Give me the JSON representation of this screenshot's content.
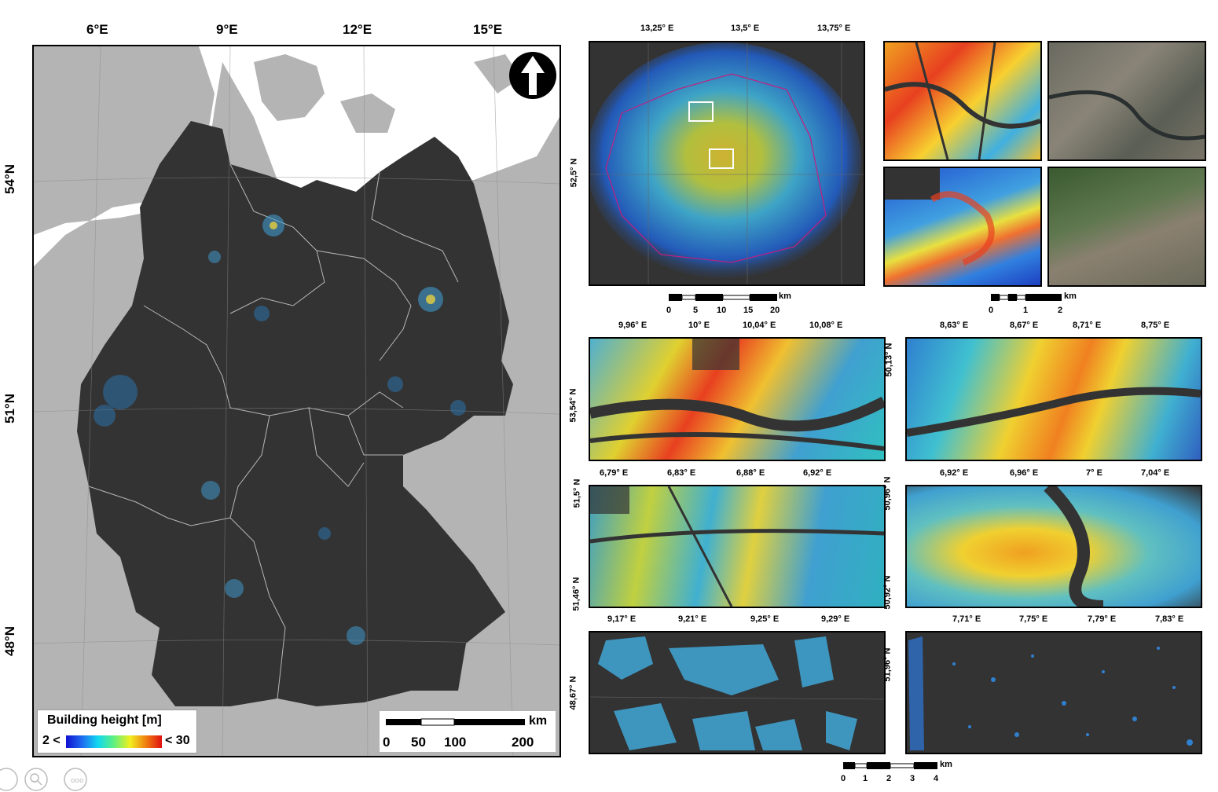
{
  "main_map": {
    "lon_labels": [
      "6°E",
      "9°E",
      "12°E",
      "15°E"
    ],
    "lat_labels": [
      "54°N",
      "51°N",
      "48°N"
    ],
    "legend_title": "Building height [m]",
    "legend_min": "2 <",
    "legend_max": "< 30",
    "scale_unit": "km",
    "scale_ticks": [
      "0",
      "50",
      "100",
      "200"
    ],
    "north_arrow": "north-arrow-icon"
  },
  "berlin_map": {
    "lon_labels": [
      "13,25° E",
      "13,5° E",
      "13,75° E"
    ],
    "lat_labels": [
      "52,5° N"
    ],
    "scale_unit": "km",
    "scale_ticks": [
      "0",
      "5",
      "10",
      "15",
      "20"
    ]
  },
  "zoom_scale": {
    "unit": "km",
    "ticks": [
      "0",
      "1",
      "2"
    ]
  },
  "hamburg_map": {
    "lon_labels": [
      "9,96° E",
      "10° E",
      "10,04° E",
      "10,08° E"
    ],
    "lat_labels": [
      "53,54° N"
    ]
  },
  "frankfurt_map": {
    "lon_labels": [
      "8,63° E",
      "8,67° E",
      "8,71° E",
      "8,75° E"
    ],
    "lat_labels": [
      "50,13° N"
    ]
  },
  "ruhr_map": {
    "lon_labels": [
      "6,79° E",
      "6,83° E",
      "6,88° E",
      "6,92° E"
    ],
    "lat_labels": [
      "51,5° N",
      "51,46° N"
    ]
  },
  "cologne_map": {
    "lon_labels": [
      "6,92° E",
      "6,96° E",
      "7° E",
      "7,04° E"
    ],
    "lat_labels": [
      "50,96° N",
      "50,92° N"
    ]
  },
  "stuttgart_map": {
    "lon_labels": [
      "9,17° E",
      "9,21° E",
      "9,25° E",
      "9,29° E"
    ],
    "lat_labels": [
      "48,67° N"
    ]
  },
  "rural_map": {
    "lon_labels": [
      "7,71° E",
      "7,75° E",
      "7,79° E",
      "7,83° E"
    ],
    "lat_labels": [
      "51,96° N"
    ]
  },
  "bottom_scale": {
    "unit": "km",
    "ticks": [
      "0",
      "1",
      "2",
      "3",
      "4"
    ]
  },
  "colors": {
    "background_dark": "#333333",
    "land_gray": "#b4b4b4",
    "sea_white": "#ffffff"
  }
}
